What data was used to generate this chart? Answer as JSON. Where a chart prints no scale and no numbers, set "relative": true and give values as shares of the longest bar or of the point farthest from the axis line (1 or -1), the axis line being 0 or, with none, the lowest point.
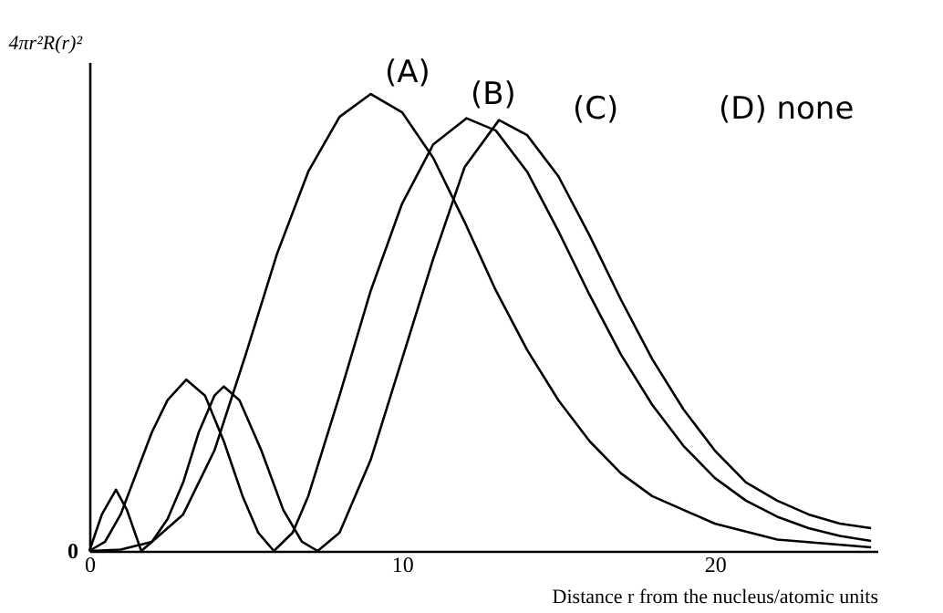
{
  "chart_data": {
    "type": "line",
    "relative": true,
    "ylabel": "4πr²R(r)²",
    "xlabel": "Distance r from the nucleus/atomic units",
    "xlim": [
      0,
      25.2
    ],
    "xticks": [
      0,
      10,
      20
    ],
    "grid": false,
    "legend": false,
    "marker": "none",
    "line_style": "solid",
    "annotations": [
      "(A)",
      "(B)",
      "(C)",
      "(D) none",
      "0"
    ],
    "series": [
      {
        "color": "#000000",
        "x": [
          0,
          1,
          2,
          3,
          4,
          5,
          6,
          7,
          8,
          9,
          10,
          11,
          12,
          13,
          14,
          15,
          16,
          17,
          18,
          20,
          22,
          25
        ],
        "values": [
          0,
          0.003,
          0.02,
          0.08,
          0.22,
          0.43,
          0.65,
          0.83,
          0.95,
          1.0,
          0.96,
          0.86,
          0.72,
          0.57,
          0.44,
          0.33,
          0.24,
          0.17,
          0.12,
          0.06,
          0.025,
          0.008
        ]
      },
      {
        "color": "#000000",
        "x": [
          0,
          0.5,
          1,
          1.5,
          2,
          2.5,
          3.1,
          3.7,
          4.3,
          4.9,
          5.4,
          5.9,
          6.5,
          7,
          8,
          9,
          10,
          11,
          12.06,
          13,
          14,
          15,
          16,
          17,
          18,
          19,
          20,
          21,
          22,
          23,
          24,
          25
        ],
        "values": [
          0,
          0.02,
          0.08,
          0.17,
          0.26,
          0.33,
          0.375,
          0.34,
          0.24,
          0.12,
          0.04,
          0,
          0.04,
          0.12,
          0.34,
          0.57,
          0.76,
          0.89,
          0.947,
          0.92,
          0.83,
          0.7,
          0.56,
          0.43,
          0.32,
          0.23,
          0.16,
          0.11,
          0.075,
          0.05,
          0.033,
          0.022
        ]
      },
      {
        "color": "#000000",
        "x": [
          0,
          0.4,
          0.85,
          1.2,
          1.66,
          2,
          2.5,
          3,
          3.5,
          4,
          4.3,
          4.8,
          5.5,
          6.2,
          6.8,
          7.3,
          8,
          9,
          10,
          11,
          12,
          13.1,
          14,
          15,
          16,
          17,
          18,
          19,
          20,
          21,
          22,
          23,
          24,
          25
        ],
        "values": [
          0,
          0.08,
          0.134,
          0.09,
          0,
          0.02,
          0.07,
          0.15,
          0.26,
          0.34,
          0.36,
          0.33,
          0.22,
          0.09,
          0.02,
          0,
          0.04,
          0.2,
          0.42,
          0.64,
          0.84,
          0.943,
          0.91,
          0.82,
          0.69,
          0.55,
          0.42,
          0.31,
          0.22,
          0.15,
          0.11,
          0.08,
          0.06,
          0.05
        ]
      }
    ]
  }
}
